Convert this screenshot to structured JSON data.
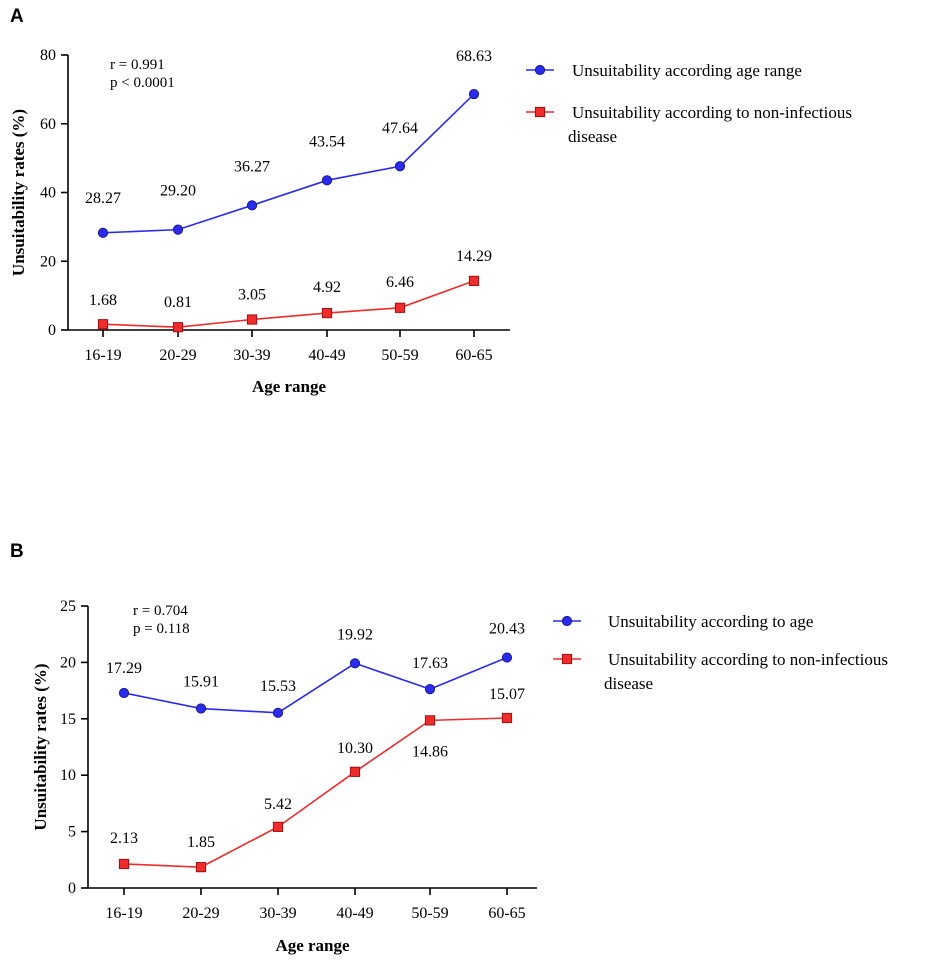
{
  "figure_alt": "Two line charts of unsuitability rates by age range",
  "chart_data": [
    {
      "panel": "A",
      "type": "line",
      "categories": [
        "16-19",
        "20-29",
        "30-39",
        "40-49",
        "50-59",
        "60-65"
      ],
      "series": [
        {
          "name": "Unsuitability  according age range",
          "name_lines": [
            "Unsuitability  according age range"
          ],
          "color": "#2b2bf0",
          "marker": "circle",
          "values": [
            28.27,
            29.2,
            36.27,
            43.54,
            47.64,
            68.63
          ],
          "labels": [
            "28.27",
            "29.20",
            "36.27",
            "43.54",
            "47.64",
            "68.63"
          ]
        },
        {
          "name": "Unsuitability according to non-infectious disease",
          "name_lines": [
            "Unsuitability according to non-infectious",
            "disease"
          ],
          "color": "#f02b2b",
          "marker": "square",
          "values": [
            1.68,
            0.81,
            3.05,
            4.92,
            6.46,
            14.29
          ],
          "labels": [
            "1.68",
            "0.81",
            "3.05",
            "4.92",
            "6.46",
            "14.29"
          ]
        }
      ],
      "xlabel": "Age range",
      "ylabel": "Unsuitability rates (%)",
      "ylim": [
        0,
        80
      ],
      "yticks": [
        "0",
        "20",
        "40",
        "60",
        "80"
      ],
      "stats": [
        "r = 0.991",
        "p < 0.0001"
      ],
      "legend_position": "right",
      "grid": false
    },
    {
      "panel": "B",
      "type": "line",
      "categories": [
        "16-19",
        "20-29",
        "30-39",
        "40-49",
        "50-59",
        "60-65"
      ],
      "series": [
        {
          "name": "Unsuitability according to age",
          "name_lines": [
            "Unsuitability according to age"
          ],
          "color": "#2b2bf0",
          "marker": "circle",
          "values": [
            17.29,
            15.91,
            15.53,
            19.92,
            17.63,
            20.43
          ],
          "labels": [
            "17.29",
            "15.91",
            "15.53",
            "19.92",
            "17.63",
            "20.43"
          ]
        },
        {
          "name": "Unsuitability according to non-infectious disease",
          "name_lines": [
            "Unsuitability according to non-infectious",
            "disease"
          ],
          "color": "#f02b2b",
          "marker": "square",
          "values": [
            2.13,
            1.85,
            5.42,
            10.3,
            14.86,
            15.07
          ],
          "labels": [
            "2.13",
            "1.85",
            "5.42",
            "10.30",
            "14.86",
            "15.07"
          ]
        }
      ],
      "xlabel": "Age range",
      "ylabel": "Unsuitability rates (%)",
      "ylim": [
        0,
        25
      ],
      "yticks": [
        "0",
        "5",
        "10",
        "15",
        "20",
        "25"
      ],
      "stats": [
        "r = 0.704",
        "p = 0.118"
      ],
      "legend_position": "right",
      "grid": false
    }
  ]
}
